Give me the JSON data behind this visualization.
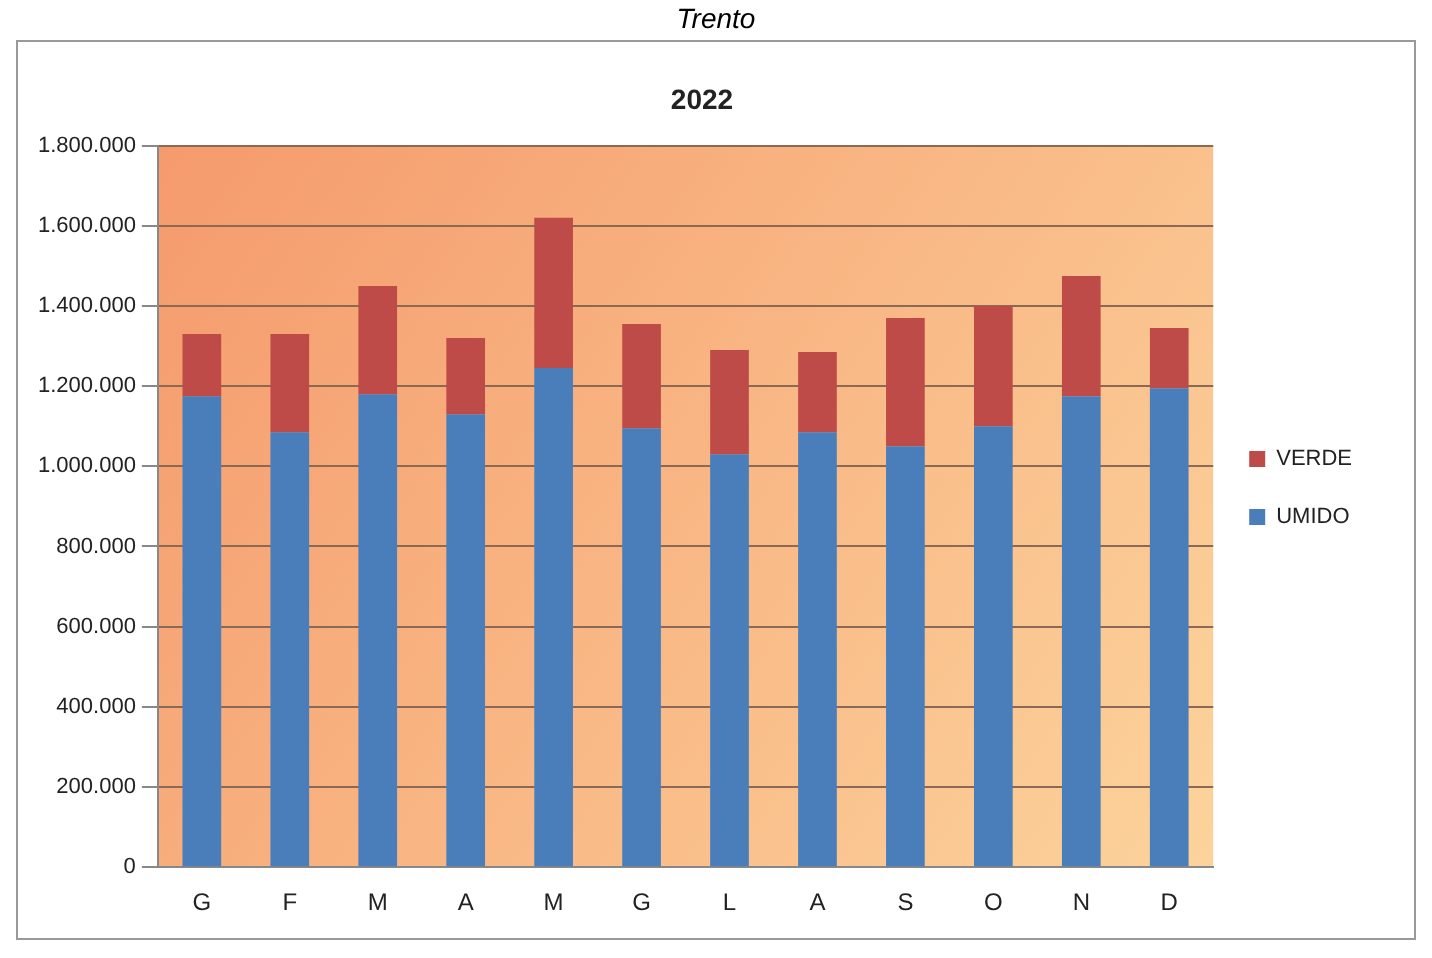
{
  "chart_data": {
    "type": "bar",
    "title": "2022",
    "annotations": [
      "Trento"
    ],
    "categories": [
      "G",
      "F",
      "M",
      "A",
      "M",
      "G",
      "L",
      "A",
      "S",
      "O",
      "N",
      "D"
    ],
    "stacked": true,
    "series": [
      {
        "name": "UMIDO",
        "color": "#4a7ebb",
        "values": [
          1175000,
          1085000,
          1180000,
          1130000,
          1245000,
          1095000,
          1030000,
          1085000,
          1050000,
          1100000,
          1175000,
          1195000
        ]
      },
      {
        "name": "VERDE",
        "color": "#be4b48",
        "values": [
          155000,
          245000,
          270000,
          190000,
          375000,
          260000,
          260000,
          200000,
          320000,
          300000,
          300000,
          150000
        ]
      }
    ],
    "ylim": [
      0,
      1800000
    ],
    "yticks": [
      {
        "value": 0,
        "label": "0"
      },
      {
        "value": 200000,
        "label": "200.000"
      },
      {
        "value": 400000,
        "label": "400.000"
      },
      {
        "value": 600000,
        "label": "600.000"
      },
      {
        "value": 800000,
        "label": "800.000"
      },
      {
        "value": 1000000,
        "label": "1.000.000"
      },
      {
        "value": 1200000,
        "label": "1.200.000"
      },
      {
        "value": 1400000,
        "label": "1.400.000"
      },
      {
        "value": 1600000,
        "label": "1.600.000"
      },
      {
        "value": 1800000,
        "label": "1.800.000"
      }
    ],
    "grid": "y",
    "legend": "right"
  }
}
